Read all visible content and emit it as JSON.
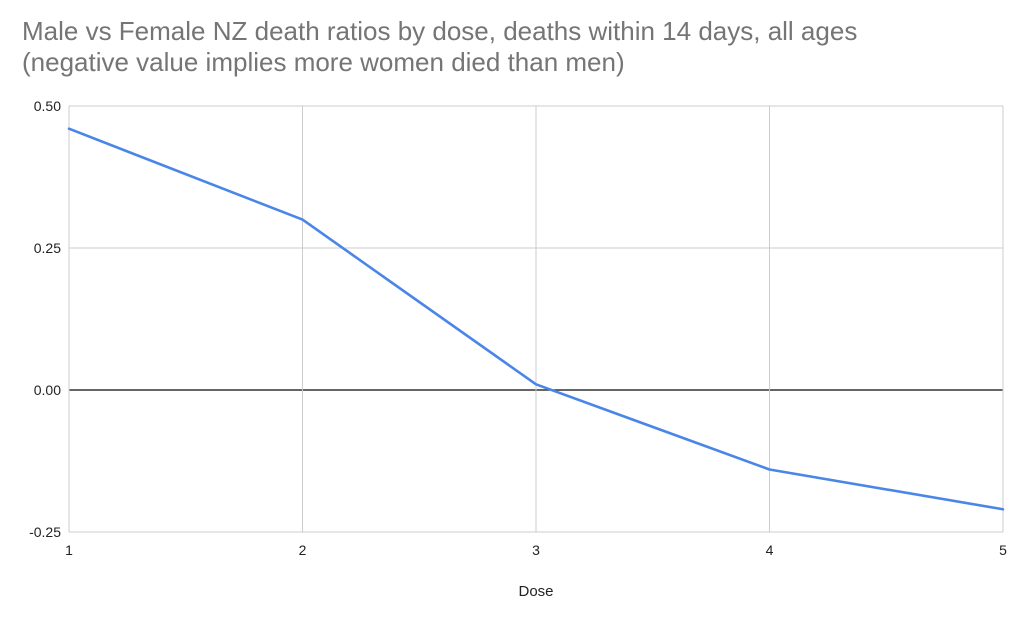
{
  "chart_data": {
    "type": "line",
    "title_line1": "Male vs Female NZ death ratios by dose, deaths within 14 days, all ages",
    "title_line2": "(negative value implies more women died than men)",
    "xlabel": "Dose",
    "ylabel": "",
    "x": [
      1,
      2,
      3,
      4,
      5
    ],
    "series": [
      {
        "values": [
          0.46,
          0.3,
          0.01,
          -0.14,
          -0.21
        ]
      }
    ],
    "xlim": [
      1,
      5
    ],
    "ylim": [
      -0.25,
      0.5
    ],
    "x_ticks": [
      "1",
      "2",
      "3",
      "4",
      "5"
    ],
    "y_ticks": [
      0.5,
      0.25,
      0.0,
      -0.25
    ],
    "y_tick_labels": [
      "0.50",
      "0.25",
      "0.00",
      "-0.25"
    ],
    "grid": true,
    "legend": "none",
    "colors": {
      "line": "#4a86e8",
      "grid": "#cccccc",
      "zero_line": "#333333",
      "title": "#757575",
      "text": "#222222"
    }
  }
}
